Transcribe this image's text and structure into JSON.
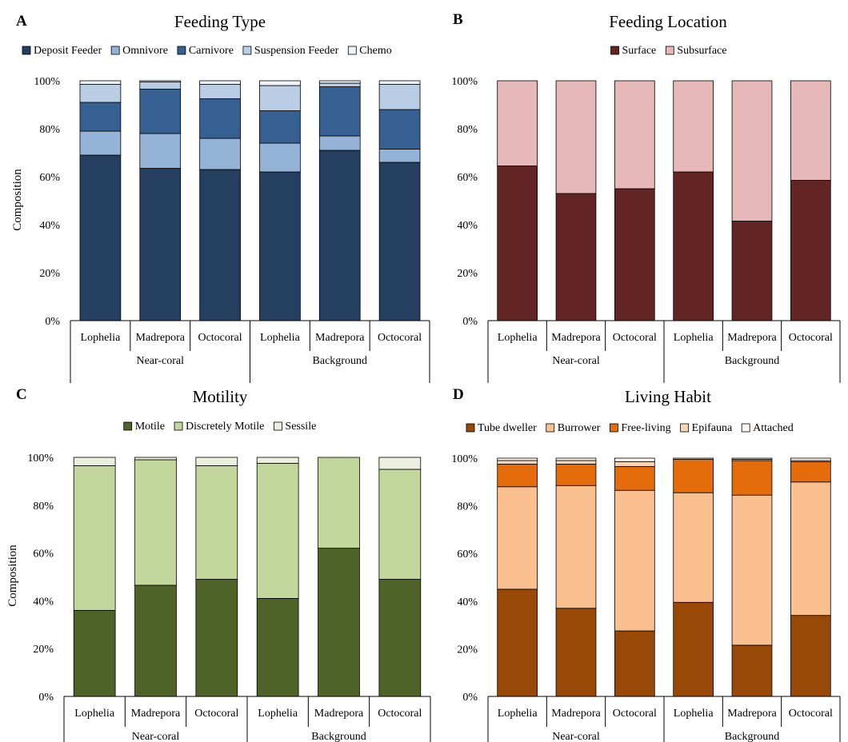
{
  "chart_data": [
    {
      "panel_letter": "A",
      "type": "bar",
      "stacked": true,
      "title": "Feeding Type",
      "xlabel": "",
      "ylabel": "Composition",
      "ylim": [
        0,
        100
      ],
      "yticks": [
        "0%",
        "20%",
        "40%",
        "60%",
        "80%",
        "100%"
      ],
      "legend_position": "top",
      "categories": [
        "Lophelia",
        "Madrepora",
        "Octocoral",
        "Lophelia",
        "Madrepora",
        "Octocoral"
      ],
      "groups": [
        {
          "label": "Near-coral",
          "count": 3
        },
        {
          "label": "Background",
          "count": 3
        }
      ],
      "series": [
        {
          "name": "Deposit Feeder",
          "color": "#243f60",
          "values": [
            69,
            63.5,
            63,
            62,
            71,
            66
          ]
        },
        {
          "name": "Omnivore",
          "color": "#95b3d7",
          "values": [
            10,
            14.5,
            13,
            12,
            6,
            5.5
          ]
        },
        {
          "name": "Carnivore",
          "color": "#366092",
          "values": [
            12,
            18.5,
            16.5,
            13.5,
            20.5,
            16.5
          ]
        },
        {
          "name": "Suspension Feeder",
          "color": "#b9cde5",
          "values": [
            7.5,
            3,
            6,
            10.5,
            1.5,
            10.5
          ]
        },
        {
          "name": "Chemo",
          "color": "#f0f5fb",
          "values": [
            1.5,
            0.5,
            1.5,
            2,
            1,
            1.5
          ]
        }
      ]
    },
    {
      "panel_letter": "B",
      "type": "bar",
      "stacked": true,
      "title": "Feeding Location",
      "xlabel": "",
      "ylabel": "",
      "ylim": [
        0,
        100
      ],
      "yticks": [
        "0%",
        "20%",
        "40%",
        "60%",
        "80%",
        "100%"
      ],
      "legend_position": "top",
      "categories": [
        "Lophelia",
        "Madrepora",
        "Octocoral",
        "Lophelia",
        "Madrepora",
        "Octocoral"
      ],
      "groups": [
        {
          "label": "Near-coral",
          "count": 3
        },
        {
          "label": "Background",
          "count": 3
        }
      ],
      "series": [
        {
          "name": "Surface",
          "color": "#632523",
          "values": [
            64.5,
            53,
            55,
            62,
            41.5,
            58.5
          ]
        },
        {
          "name": "Subsurface",
          "color": "#e6b9b8",
          "values": [
            35.5,
            47,
            45,
            38,
            58.5,
            41.5
          ]
        }
      ]
    },
    {
      "panel_letter": "C",
      "type": "bar",
      "stacked": true,
      "title": "Motility",
      "xlabel": "",
      "ylabel": "Composition",
      "ylim": [
        0,
        100
      ],
      "yticks": [
        "0%",
        "20%",
        "40%",
        "60%",
        "80%",
        "100%"
      ],
      "legend_position": "top",
      "categories": [
        "Lophelia",
        "Madrepora",
        "Octocoral",
        "Lophelia",
        "Madrepora",
        "Octocoral"
      ],
      "groups": [
        {
          "label": "Near-coral",
          "count": 3
        },
        {
          "label": "Background",
          "count": 3
        }
      ],
      "series": [
        {
          "name": "Motile",
          "color": "#4f6228",
          "values": [
            36,
            46.5,
            49,
            41,
            62,
            49
          ]
        },
        {
          "name": "Discretely Motile",
          "color": "#c3d69b",
          "values": [
            60.5,
            52.5,
            47.5,
            56.5,
            38,
            46
          ]
        },
        {
          "name": "Sessile",
          "color": "#ebf1de",
          "values": [
            3.5,
            1,
            3.5,
            2.5,
            0,
            5
          ]
        }
      ]
    },
    {
      "panel_letter": "D",
      "type": "bar",
      "stacked": true,
      "title": "Living Habit",
      "xlabel": "",
      "ylabel": "",
      "ylim": [
        0,
        100
      ],
      "yticks": [
        "0%",
        "20%",
        "40%",
        "60%",
        "80%",
        "100%"
      ],
      "legend_position": "top",
      "categories": [
        "Lophelia",
        "Madrepora",
        "Octocoral",
        "Lophelia",
        "Madrepora",
        "Octocoral"
      ],
      "groups": [
        {
          "label": "Near-coral",
          "count": 3
        },
        {
          "label": "Background",
          "count": 3
        }
      ],
      "series": [
        {
          "name": "Tube dweller",
          "color": "#984807",
          "values": [
            45,
            37,
            27.5,
            39.5,
            21.5,
            34
          ]
        },
        {
          "name": "Burrower",
          "color": "#fac090",
          "values": [
            43,
            51.5,
            59,
            46,
            63,
            56
          ]
        },
        {
          "name": "Free-living",
          "color": "#e46c0a",
          "values": [
            9.5,
            9,
            10,
            14,
            14.5,
            8.5
          ]
        },
        {
          "name": "Epifauna",
          "color": "#fcd5b5",
          "values": [
            1.5,
            1.5,
            2,
            0.5,
            0.5,
            0.5
          ]
        },
        {
          "name": "Attached",
          "color": "#fef6f0",
          "values": [
            1,
            1,
            1.5,
            0,
            0.5,
            1
          ]
        }
      ]
    }
  ]
}
